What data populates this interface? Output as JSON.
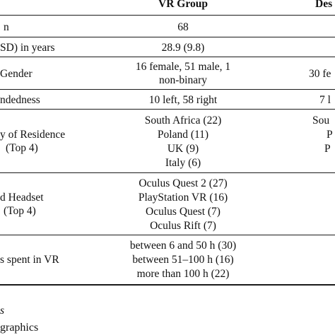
{
  "header": {
    "col_vr": "VR Group",
    "col_desktop_partial": "Des"
  },
  "rows": [
    {
      "label": "n",
      "vr": [
        "68"
      ],
      "desktop": []
    },
    {
      "label": "SD) in years",
      "vr": [
        "28.9 (9.8)"
      ],
      "desktop": []
    },
    {
      "label": "Gender",
      "vr": [
        "16 female, 51 male, 1",
        "non-binary"
      ],
      "desktop": [
        "30 fe"
      ]
    },
    {
      "label": "ndedness",
      "vr": [
        "10 left, 58 right"
      ],
      "desktop": [
        "7 l"
      ]
    },
    {
      "label_lines": [
        "y of Residence",
        "(Top 4)"
      ],
      "vr": [
        "South Africa (22)",
        "Poland (11)",
        "UK (9)",
        "Italy (6)"
      ],
      "desktop": [
        "Sou",
        "P",
        "P"
      ]
    },
    {
      "label_lines": [
        "d Headset",
        "(Top 4)"
      ],
      "vr": [
        "Oculus Quest 2 (27)",
        "PlayStation VR (16)",
        "Oculus Quest (7)",
        "Oculus Rift (7)"
      ],
      "desktop": []
    },
    {
      "label": "s spent in VR",
      "vr": [
        "between 6 and 50 h (30)",
        "between 51–100 h (16)",
        "more than 100 h (22)"
      ],
      "desktop": []
    }
  ],
  "footnotes": [
    "s",
    "graphics"
  ]
}
